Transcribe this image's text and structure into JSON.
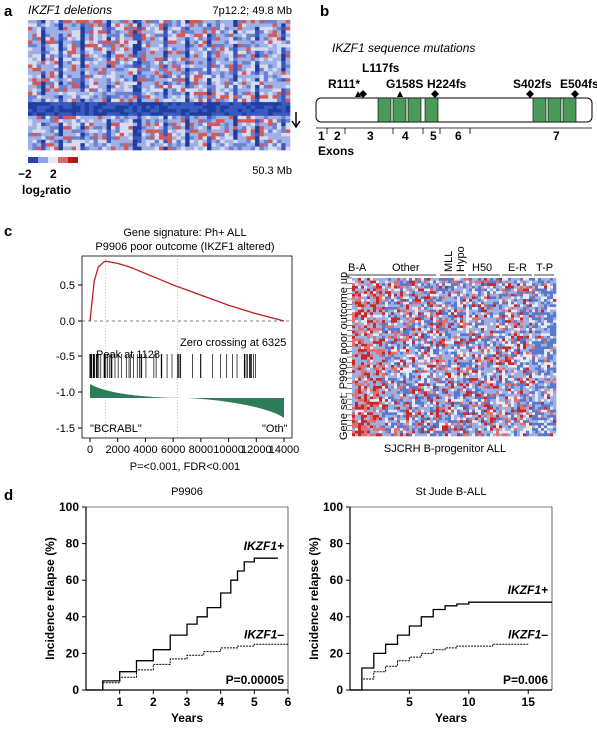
{
  "panel_labels": {
    "a": "a",
    "b": "b",
    "c": "c",
    "d": "d"
  },
  "panel_a": {
    "title": "IKZF1 deletions",
    "locus": "7p12.2; 49.8 Mb",
    "end_label": "50.3 Mb",
    "scale_min": "−2",
    "scale_max": "2",
    "scale_label_main": "log",
    "scale_label_sub": "2",
    "scale_label_tail": "ratio"
  },
  "panel_b": {
    "title": "IKZF1 sequence mutations",
    "mutations": [
      "R111*",
      "L117fs",
      "G158S",
      "H224fs",
      "S402fs",
      "E504fs"
    ],
    "exons": [
      "1",
      "2",
      "3",
      "4",
      "5",
      "6",
      "7"
    ],
    "exons_label": "Exons"
  },
  "panel_c": {
    "title_line1": "Gene signature: Ph+ ALL",
    "title_line2": "P9906 poor outcome (IKZF1 altered)",
    "peak_text": "Peak at 1128",
    "zero_text": "Zero crossing at 6325",
    "left_class": "\"BCRABL\"",
    "right_class": "\"Oth\"",
    "pvalue": "P=<0.001, FDR<0.001",
    "heat_groups": [
      "B-A",
      "Other",
      "MLL",
      "Hypo",
      "H50",
      "E-R",
      "T-P"
    ],
    "heat_ylabel": "Gene set: P9906 poor outcome up",
    "heat_xlabel": "SJCRH B-progenitor ALL"
  },
  "chart_data": [
    {
      "type": "line",
      "title": "",
      "xlabel": "",
      "ylabel": "",
      "x_ticks": [
        "0",
        "2000",
        "4000",
        "6000",
        "8000",
        "10000",
        "12000",
        "14000"
      ],
      "y_ticks": [
        "0.5",
        "0.0",
        "-0.5",
        "-1.0",
        "-1.5"
      ],
      "xlim": [
        0,
        14000
      ],
      "ylim": [
        -1.5,
        0.9
      ],
      "series": [
        {
          "x": [
            0,
            300,
            600,
            1000,
            1128,
            2000,
            3000,
            4000,
            5000,
            6000,
            7000,
            8000,
            9000,
            10000,
            11000,
            12000,
            13000,
            14000
          ],
          "y": [
            0.0,
            0.55,
            0.75,
            0.82,
            0.83,
            0.8,
            0.74,
            0.66,
            0.58,
            0.5,
            0.43,
            0.36,
            0.29,
            0.22,
            0.16,
            0.1,
            0.05,
            0.0
          ]
        }
      ]
    },
    {
      "type": "line",
      "title": "P9906",
      "xlabel": "Years",
      "ylabel": "Incidence relapse (%)",
      "x_ticks": [
        "1",
        "2",
        "3",
        "4",
        "5",
        "6"
      ],
      "y_ticks": [
        "0",
        "20",
        "40",
        "60",
        "80",
        "100"
      ],
      "xlim": [
        0,
        6
      ],
      "ylim": [
        0,
        100
      ],
      "annotation": "P=0.00005",
      "series": [
        {
          "name": "IKZF1+",
          "x": [
            0,
            0.5,
            1,
            1.5,
            2,
            2.5,
            3,
            3.3,
            3.6,
            4,
            4.3,
            4.5,
            4.7,
            5,
            5.7
          ],
          "y": [
            0,
            5,
            10,
            16,
            22,
            30,
            36,
            40,
            45,
            53,
            60,
            65,
            70,
            72,
            72
          ]
        },
        {
          "name": "IKZF1–",
          "x": [
            0,
            0.5,
            1,
            1.5,
            2,
            2.5,
            3,
            3.5,
            4,
            4.5,
            5,
            5.5,
            6
          ],
          "y": [
            0,
            4,
            7,
            11,
            14,
            17,
            19,
            21,
            23,
            24,
            25,
            25,
            25
          ]
        }
      ]
    },
    {
      "type": "line",
      "title": "St Jude B-ALL",
      "xlabel": "Years",
      "ylabel": "Incidence relapse (%)",
      "x_ticks": [
        "5",
        "10",
        "15"
      ],
      "y_ticks": [
        "0",
        "20",
        "40",
        "60",
        "80",
        "100"
      ],
      "xlim": [
        0,
        17
      ],
      "ylim": [
        0,
        100
      ],
      "annotation": "P=0.006",
      "series": [
        {
          "name": "IKZF1+",
          "x": [
            0,
            1,
            2,
            3,
            4,
            5,
            6,
            7,
            8,
            9,
            10,
            12,
            17
          ],
          "y": [
            0,
            12,
            20,
            25,
            30,
            35,
            40,
            44,
            46,
            47,
            48,
            48,
            48
          ]
        },
        {
          "name": "IKZF1–",
          "x": [
            0,
            1,
            2,
            3,
            4,
            5,
            6,
            7,
            8,
            9,
            10,
            12,
            15
          ],
          "y": [
            0,
            6,
            10,
            13,
            16,
            18,
            20,
            22,
            23,
            24,
            24,
            25,
            25
          ]
        }
      ]
    }
  ]
}
